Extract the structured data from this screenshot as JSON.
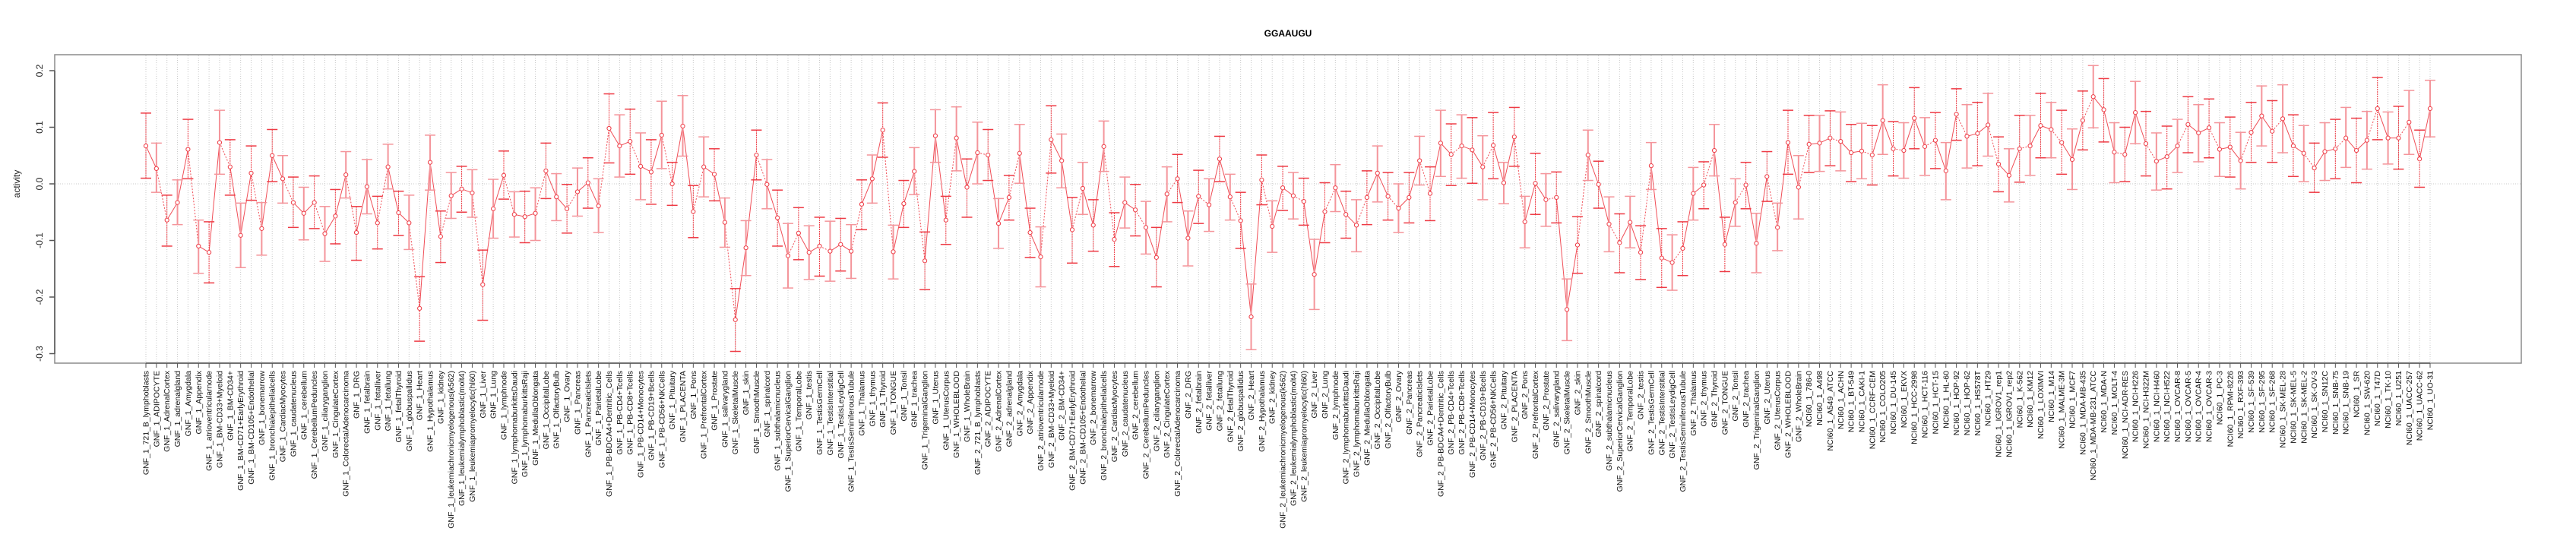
{
  "chart_data": {
    "type": "line",
    "title": "GGAAUGU",
    "xlabel": "",
    "ylabel": "activity",
    "ylim": [
      -0.32,
      0.23
    ],
    "yticks": [
      0.2,
      0.1,
      0.0,
      -0.1,
      -0.2,
      -0.3
    ],
    "ytick_labels": [
      "0.2",
      "0.1",
      "0.0",
      "-0.1",
      "-0.2",
      "-0.3"
    ],
    "grid": "vertical dotted at each category; dotted horizontal at 0",
    "legend": "none",
    "colors": {
      "series": "#ee3b45",
      "series_light": "#f4959b",
      "grid": "#c8c8c8",
      "axis": "#555555"
    },
    "categories": [
      "GNF_1_721_B_lymphoblasts",
      "GNF_1_ADIPOCYTE",
      "GNF_1_AdrenalCortex",
      "GNF_1_adrenalgland",
      "GNF_1_Amygdala",
      "GNF_1_Appendix",
      "GNF_1_atrioventricularnode",
      "GNF_1_BM-CD33+Myeloid",
      "GNF_1_BM-CD34+",
      "GNF_1_BM-CD71+EarlyErythroid",
      "GNF_1_BM-CD105+Endothelial",
      "GNF_1_bonemarrow",
      "GNF_1_bronchialepithelialcells",
      "GNF_1_CardiacMyocytes",
      "GNF_1_caudatenucleus",
      "GNF_1_cerebellum",
      "GNF_1_CerebellumPeduncles",
      "GNF_1_ciliaryganglion",
      "GNF_1_CingulateCortex",
      "GNF_1_ColorectalAdenocarcinoma",
      "GNF_1_DRG",
      "GNF_1_fetalbrain",
      "GNF_1_fetalliver",
      "GNF_1_fetallung",
      "GNF_1_fetalThyroid",
      "GNF_1_globuspallidus",
      "GNF_1_Heart",
      "GNF_1_Hypothalamus",
      "GNF_1_kidney",
      "GNF_1_leukemiachronicmyelogenous(k562)",
      "GNF_1_leukemialymphoblastic(molt4)",
      "GNF_1_leukemiapromyelocytic(hl60)",
      "GNF_1_Liver",
      "GNF_1_Lung",
      "GNF_1_lymphnode",
      "GNF_1_lymphomaburkittsDaudi",
      "GNF_1_lymphomaburkittsRaji",
      "GNF_1_MedullaOblongata",
      "GNF_1_OccipitalLobe",
      "GNF_1_OlfactoryBulb",
      "GNF_1_Ovary",
      "GNF_1_Pancreas",
      "GNF_1_PancreaticIslets",
      "GNF_1_ParietalLobe",
      "GNF_1_PB-BDCA4+Dentritic_Cells",
      "GNF_1_PB-CD4+Tcells",
      "GNF_1_PB-CD8+Tcells",
      "GNF_1_PB-CD14+Monocytes",
      "GNF_1_PB-CD19+Bcells",
      "GNF_1_PB-CD56+NKCells",
      "GNF_1_Pituitary",
      "GNF_1_PLACENTA",
      "GNF_1_Pons",
      "GNF_1_PrefrontalCortex",
      "GNF_1_Prostate",
      "GNF_1_salivarygland",
      "GNF_1_SkeletalMuscle",
      "GNF_1_skin",
      "GNF_1_SmoothMuscle",
      "GNF_1_spinalcord",
      "GNF_1_subthalamicnucleus",
      "GNF_1_SuperiorCervicalGanglion",
      "GNF_1_TemporalLobe",
      "GNF_1_testis",
      "GNF_1_TestisGermCell",
      "GNF_1_TestisInterstitial",
      "GNF_1_TestisLeydigCell",
      "GNF_1_TestisSeminiferousTubule",
      "GNF_1_Thalamus",
      "GNF_1_thymus",
      "GNF_1_Thyroid",
      "GNF_1_TONGUE",
      "GNF_1_Tonsil",
      "GNF_1_trachea",
      "GNF_1_TrigeminalGanglion",
      "GNF_1_Uterus",
      "GNF_1_UterusCorpus",
      "GNF_1_WHOLEBLOOD",
      "GNF_1_WholeBrain",
      "GNF_2_721_B_lymphoblasts",
      "GNF_2_ADIPOCYTE",
      "GNF_2_AdrenalCortex",
      "GNF_2_adrenalgland",
      "GNF_2_Amygdala",
      "GNF_2_Appendix",
      "GNF_2_atrioventricularnode",
      "GNF_2_BM-CD33+Myeloid",
      "GNF_2_BM-CD34+",
      "GNF_2_BM-CD71+EarlyErythroid",
      "GNF_2_BM-CD105+Endothelial",
      "GNF_2_bonemarrow",
      "GNF_2_bronchialepithelialcells",
      "GNF_2_CardiacMyocytes",
      "GNF_2_caudatenucleus",
      "GNF_2_cerebellum",
      "GNF_2_CerebellumPeduncles",
      "GNF_2_ciliaryganglion",
      "GNF_2_CingulateCortex",
      "GNF_2_ColorectalAdenocarcinoma",
      "GNF_2_DRG",
      "GNF_2_fetalbrain",
      "GNF_2_fetalliver",
      "GNF_2_fetallung",
      "GNF_2_fetalThyroid",
      "GNF_2_globuspallidus",
      "GNF_2_Heart",
      "GNF_2_Hypothalamus",
      "GNF_2_kidney",
      "GNF_2_leukemiachronicmyelogenous(k562)",
      "GNF_2_leukemialymphoblastic(molt4)",
      "GNF_2_leukemiapromyelocytic(hl60)",
      "GNF_2_Liver",
      "GNF_2_Lung",
      "GNF_2_lymphnode",
      "GNF_2_lymphomaburkittsDaudi",
      "GNF_2_lymphomaburkittsRaji",
      "GNF_2_MedullaOblongata",
      "GNF_2_OccipitalLobe",
      "GNF_2_OlfactoryBulb",
      "GNF_2_Ovary",
      "GNF_2_Pancreas",
      "GNF_2_PancreaticIslets",
      "GNF_2_ParietalLobe",
      "GNF_2_PB-BDCA4+Dentritic_Cells",
      "GNF_2_PB-CD4+Tcells",
      "GNF_2_PB-CD8+Tcells",
      "GNF_2_PB-CD14+Monocytes",
      "GNF_2_PB-CD19+Bcells",
      "GNF_2_PB-CD56+NKCells",
      "GNF_2_Pituitary",
      "GNF_2_PLACENTA",
      "GNF_2_Pons",
      "GNF_2_PrefrontalCortex",
      "GNF_2_Prostate",
      "GNF_2_salivarygland",
      "GNF_2_SkeletalMuscle",
      "GNF_2_skin",
      "GNF_2_SmoothMuscle",
      "GNF_2_spinalcord",
      "GNF_2_subthalamicnucleus",
      "GNF_2_SuperiorCervicalGanglion",
      "GNF_2_TemporalLobe",
      "GNF_2_testis",
      "GNF_2_TestisGermCell",
      "GNF_2_TestisInterstitial",
      "GNF_2_TestisLeydigCell",
      "GNF_2_TestisSeminiferousTubule",
      "GNF_2_Thalamus",
      "GNF_2_thymus",
      "GNF_2_Thyroid",
      "GNF_2_TONGUE",
      "GNF_2_Tonsil",
      "GNF_2_trachea",
      "GNF_2_TrigeminalGanglion",
      "GNF_2_Uterus",
      "GNF_2_UterusCorpus",
      "GNF_2_WHOLEBLOOD",
      "GNF_2_WholeBrain",
      "NCI60_1_786-0",
      "NCI60_1_A498",
      "NCI60_1_A549_ATCC",
      "NCI60_1_ACHN",
      "NCI60_1_BT-549",
      "NCI60_1_CAKI-1",
      "NCI60_1_CCRF-CEM",
      "NCI60_1_COLO205",
      "NCI60_1_DU-145",
      "NCI60_1_EKVX",
      "NCI60_1_HCC-2998",
      "NCI60_1_HCT-116",
      "NCI60_1_HCT-15",
      "NCI60_1_HL-60",
      "NCI60_1_HOP-92",
      "NCI60_1_HOP-62",
      "NCI60_1_HS578T",
      "NCI60_1_HT29",
      "NCI60_1_IGROV1_rep1",
      "NCI60_1_IGROV1_rep2",
      "NCI60_1_K-562",
      "NCI60_1_KM12",
      "NCI60_1_LOXIMVI",
      "NCI60_1_M14",
      "NCI60_1_MALME-3M",
      "NCI60_1_MCF7",
      "NCI60_1_MDA-MB-435",
      "NCI60_1_MDA-MB-231_ATCC",
      "NCI60_1_MDA-N",
      "NCI60_1_MOLT-4",
      "NCI60_1_NCI-ADR-RES",
      "NCI60_1_NCI-H226",
      "NCI60_1_NCI-H322M",
      "NCI60_1_NCI-H460",
      "NCI60_1_NCI-H522",
      "NCI60_1_OVCAR-8",
      "NCI60_1_OVCAR-5",
      "NCI60_1_OVCAR-4",
      "NCI60_1_OVCAR-3",
      "NCI60_1_PC-3",
      "NCI60_1_RPMI-8226",
      "NCI60_1_RXF-393",
      "NCI60_1_SF-539",
      "NCI60_1_SF-295",
      "NCI60_1_SF-268",
      "NCI60_1_SK-MEL-28",
      "NCI60_1_SK-MEL-5",
      "NCI60_1_SK-MEL-2",
      "NCI60_1_SK-OV-3",
      "NCI60_1_SN12C",
      "NCI60_1_SNB-75",
      "NCI60_1_SNB-19",
      "NCI60_1_SR",
      "NCI60_1_SW-620",
      "NCI60_1_T47D",
      "NCI60_1_TK-10",
      "NCI60_1_U251",
      "NCI60_1_UACC-257",
      "NCI60_1_UACC-62",
      "NCI60_1_UO-31"
    ],
    "series": [
      {
        "name": "activity",
        "values": [
          0.067,
          0.027,
          -0.064,
          -0.033,
          0.061,
          -0.11,
          -0.121,
          0.073,
          0.03,
          -0.091,
          0.019,
          -0.079,
          0.05,
          0.009,
          -0.033,
          -0.052,
          -0.033,
          -0.088,
          -0.057,
          0.016,
          -0.086,
          -0.005,
          -0.069,
          0.03,
          -0.051,
          -0.069,
          -0.22,
          0.038,
          -0.093,
          -0.021,
          -0.009,
          -0.016,
          -0.178,
          -0.044,
          0.015,
          -0.054,
          -0.058,
          -0.052,
          0.023,
          -0.023,
          -0.044,
          -0.014,
          0.002,
          -0.039,
          0.098,
          0.067,
          0.075,
          0.031,
          0.021,
          0.086,
          0.0,
          0.102,
          -0.049,
          0.03,
          0.017,
          -0.068,
          -0.24,
          -0.113,
          0.051,
          -0.001,
          -0.06,
          -0.127,
          -0.087,
          -0.121,
          -0.11,
          -0.119,
          -0.107,
          -0.119,
          -0.036,
          0.009,
          0.095,
          -0.12,
          -0.035,
          0.022,
          -0.136,
          0.085,
          -0.064,
          0.081,
          -0.006,
          0.055,
          0.051,
          -0.07,
          -0.024,
          0.054,
          -0.086,
          -0.129,
          0.078,
          0.041,
          -0.081,
          -0.008,
          -0.073,
          0.066,
          -0.098,
          -0.033,
          -0.046,
          -0.077,
          -0.13,
          -0.018,
          0.009,
          -0.096,
          -0.022,
          -0.037,
          0.044,
          -0.023,
          -0.065,
          -0.235,
          0.007,
          -0.075,
          -0.007,
          -0.021,
          -0.031,
          -0.16,
          -0.049,
          -0.007,
          -0.054,
          -0.073,
          -0.024,
          0.019,
          -0.022,
          -0.043,
          -0.024,
          0.041,
          -0.017,
          0.072,
          0.052,
          0.067,
          0.06,
          0.03,
          0.068,
          0.002,
          0.083,
          -0.067,
          0.001,
          -0.028,
          -0.024,
          -0.222,
          -0.108,
          0.051,
          -0.001,
          -0.071,
          -0.104,
          -0.068,
          -0.121,
          0.032,
          -0.131,
          -0.139,
          -0.114,
          -0.017,
          -0.002,
          0.059,
          -0.107,
          -0.033,
          -0.002,
          -0.105,
          0.013,
          -0.077,
          0.073,
          -0.006,
          0.07,
          0.072,
          0.081,
          0.075,
          0.055,
          0.058,
          0.051,
          0.112,
          0.062,
          0.059,
          0.116,
          0.066,
          0.077,
          0.023,
          0.123,
          0.084,
          0.089,
          0.104,
          0.035,
          0.015,
          0.062,
          0.067,
          0.103,
          0.096,
          0.073,
          0.043,
          0.112,
          0.154,
          0.131,
          0.056,
          0.052,
          0.126,
          0.071,
          0.04,
          0.048,
          0.067,
          0.105,
          0.09,
          0.099,
          0.061,
          0.065,
          0.041,
          0.091,
          0.12,
          0.093,
          0.115,
          0.067,
          0.054,
          0.028,
          0.057,
          0.062,
          0.081,
          0.059,
          0.077,
          0.133,
          0.081,
          0.081,
          0.109,
          0.044,
          0.133
        ],
        "upper": [
          0.125,
          0.072,
          -0.02,
          0.007,
          0.114,
          -0.064,
          -0.067,
          0.13,
          0.078,
          -0.034,
          0.067,
          -0.033,
          0.096,
          0.05,
          0.012,
          -0.006,
          0.014,
          -0.04,
          -0.01,
          0.057,
          -0.04,
          0.043,
          -0.022,
          0.07,
          -0.013,
          -0.02,
          -0.164,
          0.086,
          -0.048,
          0.02,
          0.031,
          0.025,
          -0.117,
          0.008,
          0.058,
          -0.014,
          -0.013,
          -0.007,
          0.072,
          0.018,
          -0.001,
          0.028,
          0.046,
          0.009,
          0.159,
          0.122,
          0.132,
          0.09,
          0.078,
          0.146,
          0.038,
          0.156,
          -0.003,
          0.083,
          0.062,
          -0.025,
          -0.185,
          -0.065,
          0.095,
          0.043,
          -0.011,
          -0.07,
          -0.042,
          -0.074,
          -0.059,
          -0.066,
          -0.061,
          -0.072,
          0.007,
          0.051,
          0.143,
          -0.073,
          0.006,
          0.064,
          -0.085,
          0.131,
          -0.022,
          0.136,
          0.044,
          0.109,
          0.096,
          -0.026,
          0.015,
          0.105,
          -0.043,
          -0.076,
          0.138,
          0.088,
          -0.024,
          0.038,
          -0.028,
          0.111,
          -0.051,
          0.012,
          -0.001,
          -0.031,
          -0.077,
          0.03,
          0.052,
          -0.048,
          0.024,
          0.009,
          0.084,
          0.017,
          -0.015,
          -0.177,
          0.051,
          -0.03,
          0.031,
          0.02,
          0.01,
          -0.098,
          0.002,
          0.034,
          -0.013,
          -0.028,
          0.023,
          0.067,
          0.02,
          0.0,
          0.02,
          0.084,
          0.03,
          0.13,
          0.106,
          0.122,
          0.117,
          0.085,
          0.126,
          0.038,
          0.135,
          -0.022,
          0.054,
          0.018,
          0.021,
          -0.168,
          -0.058,
          0.095,
          0.04,
          -0.023,
          -0.053,
          -0.022,
          -0.074,
          0.073,
          -0.079,
          -0.09,
          -0.067,
          0.029,
          0.039,
          0.105,
          -0.059,
          0.009,
          0.038,
          -0.052,
          0.057,
          -0.034,
          0.13,
          0.05,
          0.121,
          0.121,
          0.129,
          0.127,
          0.105,
          0.107,
          0.103,
          0.175,
          0.11,
          0.108,
          0.17,
          0.117,
          0.126,
          0.073,
          0.168,
          0.14,
          0.144,
          0.16,
          0.083,
          0.062,
          0.121,
          0.121,
          0.16,
          0.144,
          0.13,
          0.097,
          0.164,
          0.209,
          0.186,
          0.108,
          0.1,
          0.181,
          0.128,
          0.09,
          0.102,
          0.114,
          0.154,
          0.14,
          0.15,
          0.108,
          0.118,
          0.091,
          0.144,
          0.173,
          0.147,
          0.175,
          0.122,
          0.103,
          0.072,
          0.108,
          0.114,
          0.135,
          0.116,
          0.128,
          0.188,
          0.127,
          0.137,
          0.165,
          0.095,
          0.183
        ],
        "lower": [
          0.01,
          -0.015,
          -0.11,
          -0.072,
          0.009,
          -0.158,
          -0.175,
          0.017,
          -0.02,
          -0.148,
          -0.029,
          -0.126,
          0.004,
          -0.034,
          -0.077,
          -0.099,
          -0.079,
          -0.137,
          -0.106,
          -0.025,
          -0.135,
          -0.053,
          -0.115,
          -0.009,
          -0.091,
          -0.116,
          -0.278,
          -0.011,
          -0.139,
          -0.061,
          -0.05,
          -0.059,
          -0.241,
          -0.096,
          -0.027,
          -0.094,
          -0.104,
          -0.1,
          -0.026,
          -0.065,
          -0.087,
          -0.057,
          -0.043,
          -0.086,
          0.037,
          0.012,
          0.017,
          -0.028,
          -0.036,
          0.027,
          -0.038,
          0.049,
          -0.095,
          -0.023,
          -0.03,
          -0.112,
          -0.296,
          -0.162,
          0.007,
          -0.044,
          -0.11,
          -0.184,
          -0.134,
          -0.169,
          -0.163,
          -0.172,
          -0.154,
          -0.167,
          -0.081,
          -0.034,
          0.047,
          -0.168,
          -0.077,
          -0.019,
          -0.187,
          0.038,
          -0.107,
          0.023,
          -0.059,
          0.0,
          0.006,
          -0.114,
          -0.064,
          0.001,
          -0.13,
          -0.182,
          0.019,
          -0.007,
          -0.14,
          -0.054,
          -0.119,
          0.022,
          -0.146,
          -0.078,
          -0.092,
          -0.124,
          -0.182,
          -0.067,
          -0.033,
          -0.145,
          -0.07,
          -0.084,
          0.004,
          -0.064,
          -0.114,
          -0.293,
          -0.037,
          -0.121,
          -0.047,
          -0.062,
          -0.073,
          -0.222,
          -0.104,
          -0.049,
          -0.096,
          -0.12,
          -0.072,
          -0.032,
          -0.064,
          -0.086,
          -0.069,
          -0.002,
          -0.065,
          0.013,
          -0.003,
          0.01,
          0.001,
          -0.028,
          0.009,
          -0.035,
          0.031,
          -0.113,
          -0.054,
          -0.075,
          -0.069,
          -0.277,
          -0.158,
          0.006,
          -0.043,
          -0.12,
          -0.157,
          -0.113,
          -0.169,
          -0.01,
          -0.183,
          -0.188,
          -0.162,
          -0.064,
          -0.044,
          0.014,
          -0.155,
          -0.075,
          -0.044,
          -0.157,
          -0.031,
          -0.118,
          0.017,
          -0.062,
          0.02,
          0.022,
          0.032,
          0.023,
          0.004,
          0.009,
          -0.002,
          0.052,
          0.014,
          0.01,
          0.062,
          0.015,
          0.027,
          -0.028,
          0.077,
          0.028,
          0.032,
          0.049,
          -0.014,
          -0.032,
          0.003,
          0.015,
          0.046,
          0.046,
          0.017,
          -0.01,
          0.06,
          0.099,
          0.074,
          0.002,
          0.004,
          0.071,
          0.014,
          -0.011,
          -0.009,
          0.02,
          0.055,
          0.039,
          0.046,
          0.013,
          0.012,
          -0.009,
          0.038,
          0.067,
          0.038,
          0.055,
          0.013,
          0.004,
          -0.015,
          0.006,
          0.009,
          0.029,
          0.002,
          0.026,
          0.078,
          0.035,
          0.026,
          0.052,
          -0.006,
          0.083
        ]
      }
    ]
  }
}
